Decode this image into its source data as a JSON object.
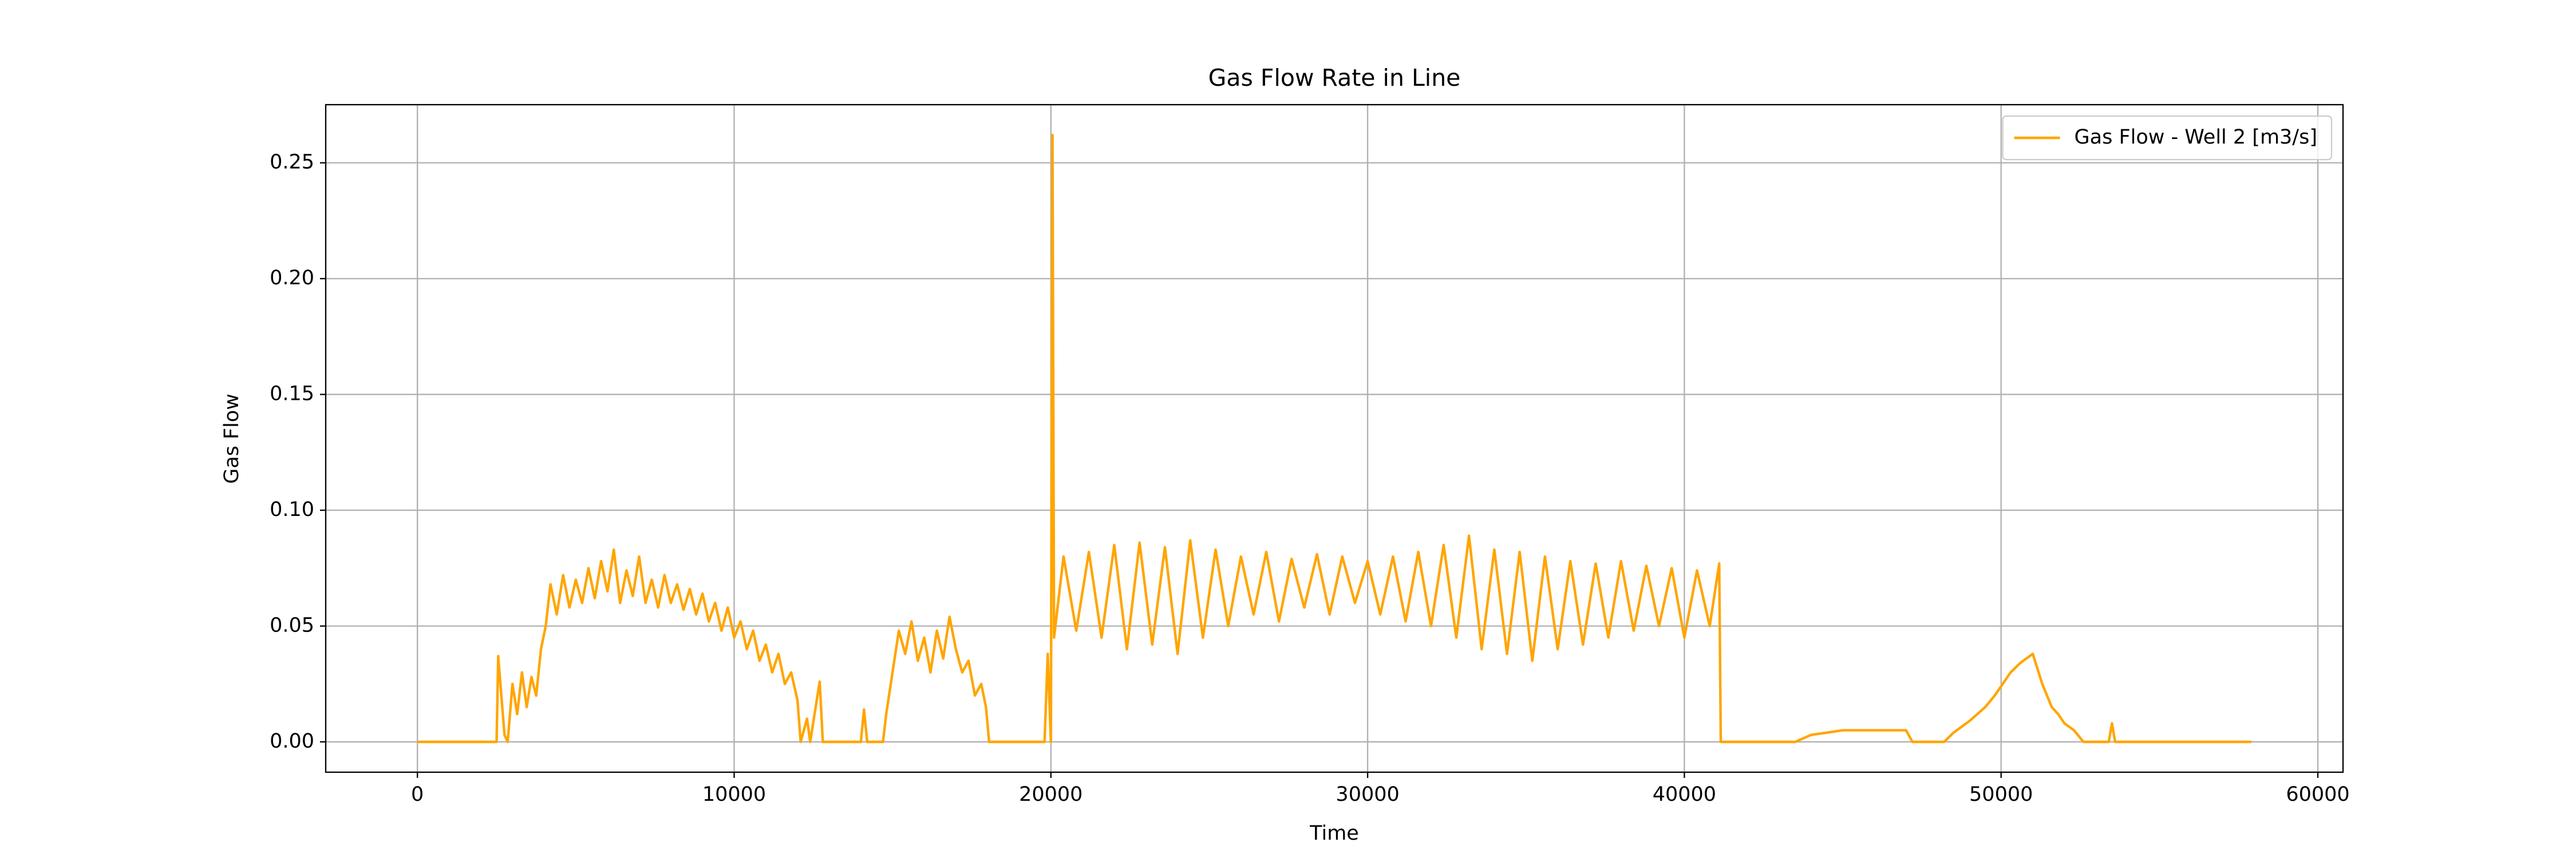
{
  "chart_data": {
    "type": "line",
    "title": "Gas Flow Rate in Line",
    "x_label": "Time",
    "y_label": "Gas Flow",
    "x": [
      0,
      2500,
      2550,
      2650,
      2750,
      2850,
      3000,
      3150,
      3300,
      3450,
      3600,
      3750,
      3900,
      4050,
      4200,
      4400,
      4600,
      4800,
      5000,
      5200,
      5400,
      5600,
      5800,
      6000,
      6200,
      6400,
      6600,
      6800,
      7000,
      7200,
      7400,
      7600,
      7800,
      8000,
      8200,
      8400,
      8600,
      8800,
      9000,
      9200,
      9400,
      9600,
      9800,
      10000,
      10200,
      10400,
      10600,
      10800,
      11000,
      11200,
      11400,
      11600,
      11800,
      12000,
      12100,
      12300,
      12400,
      12700,
      12800,
      12900,
      14000,
      14100,
      14200,
      14700,
      14800,
      15000,
      15200,
      15400,
      15600,
      15800,
      16000,
      16200,
      16400,
      16600,
      16800,
      17000,
      17200,
      17400,
      17600,
      17800,
      17950,
      18050,
      19800,
      19900,
      20000,
      20050,
      20100,
      20400,
      20800,
      21200,
      21600,
      22000,
      22400,
      22800,
      23200,
      23600,
      24000,
      24400,
      24800,
      25200,
      25600,
      26000,
      26400,
      26800,
      27200,
      27600,
      28000,
      28400,
      28800,
      29200,
      29600,
      30000,
      30400,
      30800,
      31200,
      31600,
      32000,
      32400,
      32800,
      33200,
      33600,
      34000,
      34400,
      34800,
      35200,
      35600,
      36000,
      36400,
      36800,
      37200,
      37600,
      38000,
      38400,
      38800,
      39200,
      39600,
      40000,
      40400,
      40800,
      41100,
      41150,
      41250,
      43500,
      44000,
      44500,
      45000,
      46000,
      47000,
      47200,
      48200,
      48500,
      49000,
      49500,
      49800,
      50300,
      50600,
      51000,
      51300,
      51600,
      51800,
      52000,
      52300,
      52600,
      53400,
      53500,
      53600,
      57900
    ],
    "series": [
      {
        "name": "Gas Flow - Well 2 [m3/s]",
        "color": "#ffa500",
        "values": [
          0,
          0,
          0.037,
          0.02,
          0.003,
          0,
          0.025,
          0.012,
          0.03,
          0.015,
          0.028,
          0.02,
          0.04,
          0.05,
          0.068,
          0.055,
          0.072,
          0.058,
          0.07,
          0.06,
          0.075,
          0.062,
          0.078,
          0.065,
          0.083,
          0.06,
          0.074,
          0.063,
          0.08,
          0.06,
          0.07,
          0.058,
          0.072,
          0.06,
          0.068,
          0.057,
          0.066,
          0.055,
          0.064,
          0.052,
          0.06,
          0.048,
          0.058,
          0.045,
          0.052,
          0.04,
          0.048,
          0.035,
          0.042,
          0.03,
          0.038,
          0.025,
          0.03,
          0.018,
          0,
          0.01,
          0,
          0.026,
          0,
          0,
          0,
          0.014,
          0,
          0,
          0.012,
          0.03,
          0.048,
          0.038,
          0.052,
          0.035,
          0.045,
          0.03,
          0.048,
          0.036,
          0.054,
          0.04,
          0.03,
          0.035,
          0.02,
          0.025,
          0.015,
          0,
          0,
          0.038,
          0,
          0.262,
          0.045,
          0.08,
          0.048,
          0.082,
          0.045,
          0.085,
          0.04,
          0.086,
          0.042,
          0.084,
          0.038,
          0.087,
          0.045,
          0.083,
          0.05,
          0.08,
          0.055,
          0.082,
          0.052,
          0.079,
          0.058,
          0.081,
          0.055,
          0.08,
          0.06,
          0.078,
          0.055,
          0.08,
          0.052,
          0.082,
          0.05,
          0.085,
          0.045,
          0.089,
          0.04,
          0.083,
          0.038,
          0.082,
          0.035,
          0.08,
          0.04,
          0.078,
          0.042,
          0.077,
          0.045,
          0.078,
          0.048,
          0.076,
          0.05,
          0.075,
          0.045,
          0.074,
          0.05,
          0.077,
          0,
          0,
          0,
          0.003,
          0.004,
          0.005,
          0.005,
          0.005,
          0,
          0,
          0.004,
          0.009,
          0.015,
          0.02,
          0.03,
          0.034,
          0.038,
          0.025,
          0.015,
          0.012,
          0.008,
          0.005,
          0,
          0,
          0.008,
          0,
          0
        ]
      }
    ],
    "xlim": [
      -2895,
      60795
    ],
    "ylim": [
      -0.0131,
      0.2751
    ],
    "xticks": [
      0,
      10000,
      20000,
      30000,
      40000,
      50000,
      60000
    ],
    "yticks": [
      {
        "value": 0,
        "label": "0.00"
      },
      0.05,
      {
        "value": 0.1,
        "label": "0.10"
      },
      0.15,
      {
        "value": 0.2,
        "label": "0.20"
      },
      0.25
    ],
    "grid": true,
    "legend_position": "upper right"
  }
}
